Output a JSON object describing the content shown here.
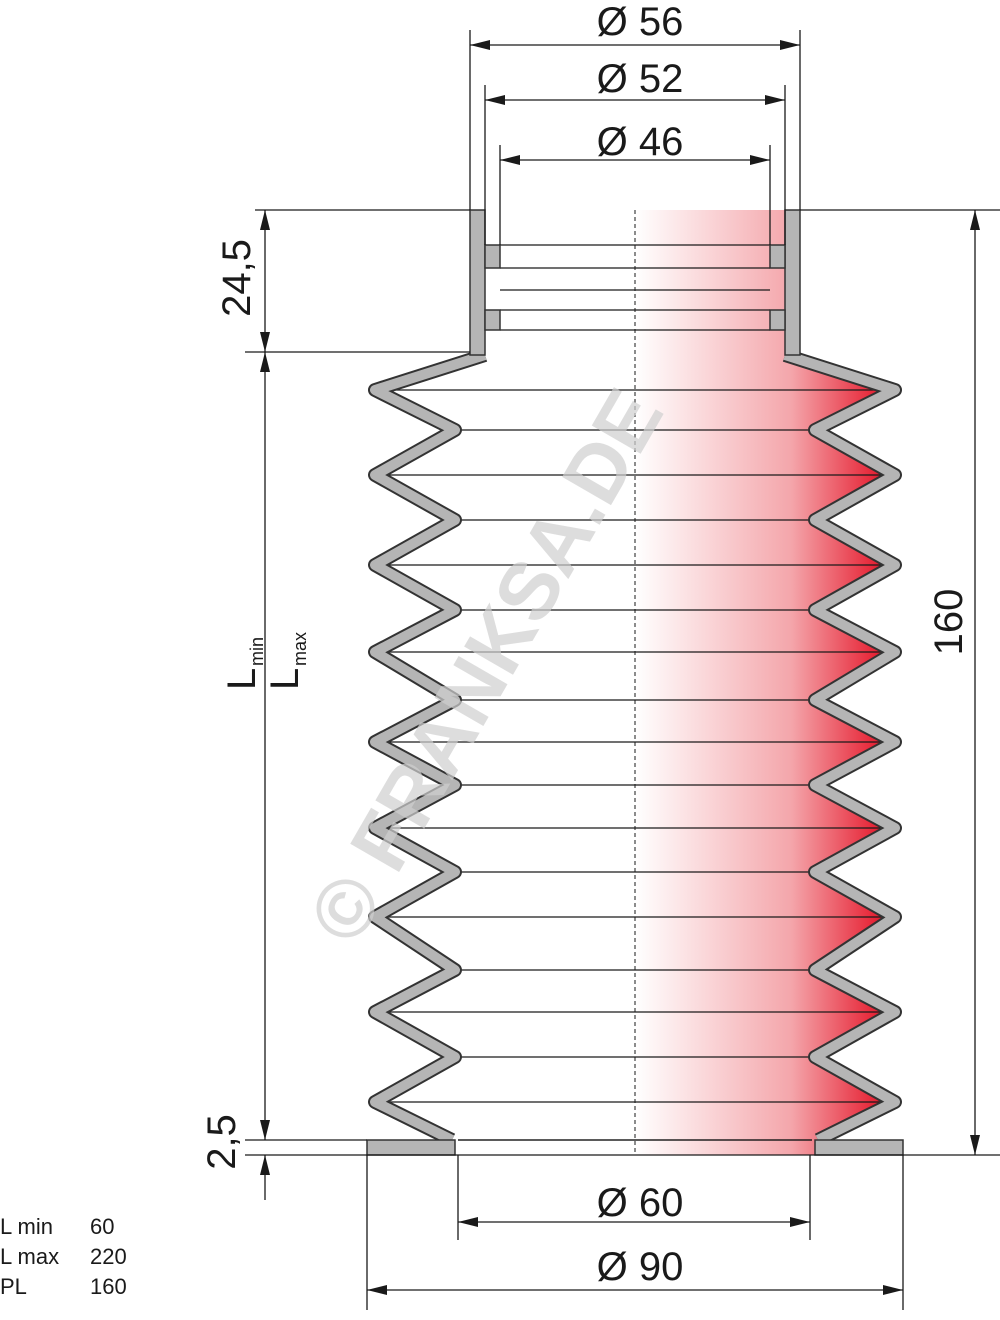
{
  "dimensions": [
    "Ø 56",
    "Ø 52",
    "Ø 46",
    "24,5",
    "160",
    "2,5",
    "Ø 60",
    "Ø 90"
  ],
  "length_labels": [
    {
      "symbol": "L",
      "subscript": "min"
    },
    {
      "symbol": "L",
      "subscript": "max"
    }
  ],
  "specs": {
    "rows": [
      [
        "L min",
        "60"
      ],
      [
        "L max",
        "220"
      ],
      [
        "PL",
        "160"
      ]
    ]
  },
  "watermark": "© FRANKSA.DE"
}
